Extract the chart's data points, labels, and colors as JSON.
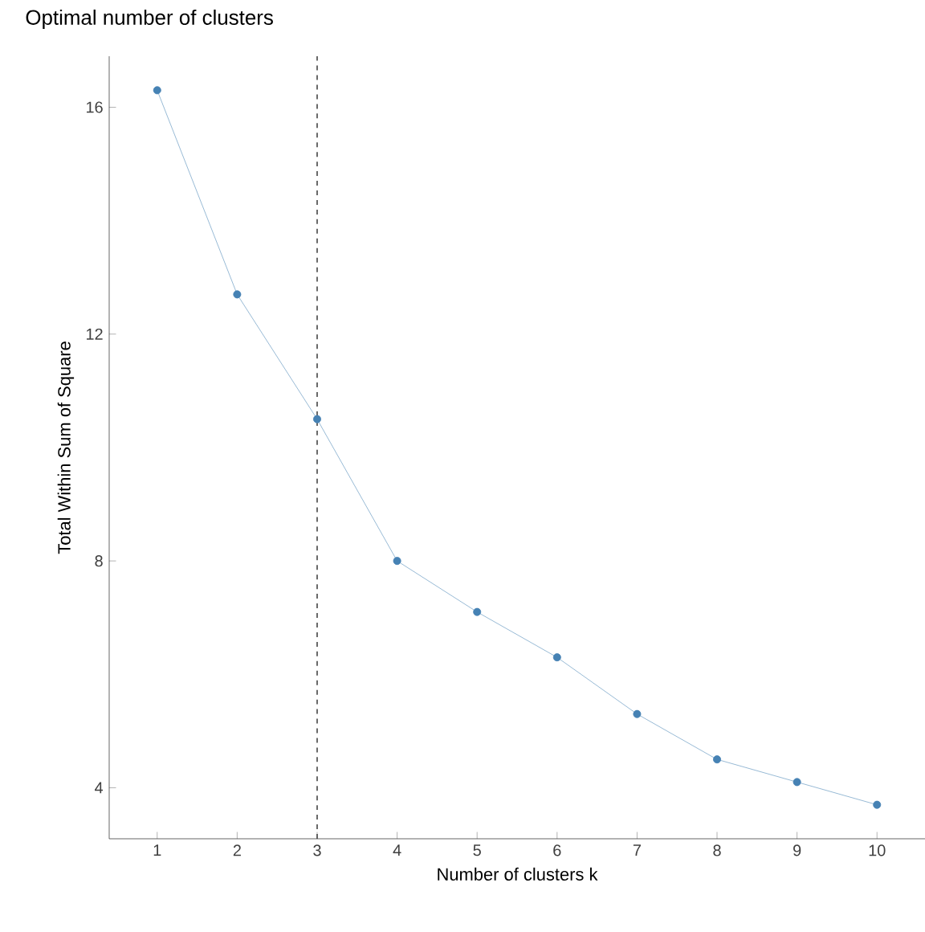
{
  "chart_data": {
    "type": "line",
    "title": "Optimal number of clusters",
    "xlabel": "Number of clusters k",
    "ylabel": "Total Within Sum of Square",
    "x": [
      1,
      2,
      3,
      4,
      5,
      6,
      7,
      8,
      9,
      10
    ],
    "series": [
      {
        "color": "#4682b4",
        "values": [
          16.3,
          12.7,
          10.5,
          8.0,
          7.1,
          6.3,
          5.3,
          4.5,
          4.1,
          3.7
        ]
      }
    ],
    "xlim": [
      0.4,
      10.6
    ],
    "ylim": [
      3.1,
      16.9
    ],
    "xticks": [
      1,
      2,
      3,
      4,
      5,
      6,
      7,
      8,
      9,
      10
    ],
    "yticks": [
      4,
      8,
      12,
      16
    ],
    "ref_lines": [
      {
        "axis": "x",
        "value": 3,
        "line_style": "dashed",
        "color": "#444444"
      }
    ],
    "marker": "circle",
    "line_style": "solid",
    "grid": false,
    "legend": false
  }
}
